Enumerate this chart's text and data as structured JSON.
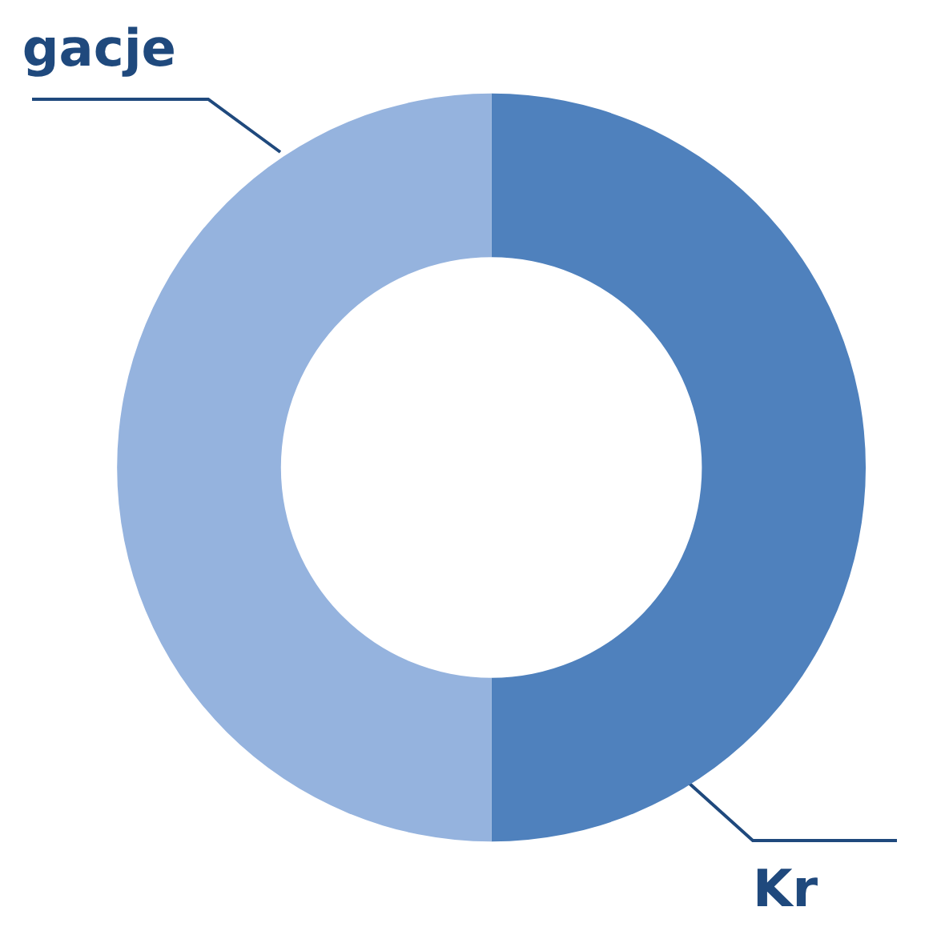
{
  "chart_data": {
    "type": "donut",
    "categories": [
      "Kr",
      "gacje"
    ],
    "values": [
      50,
      50
    ],
    "colors": [
      "#4f81bd",
      "#95b3de"
    ]
  }
}
